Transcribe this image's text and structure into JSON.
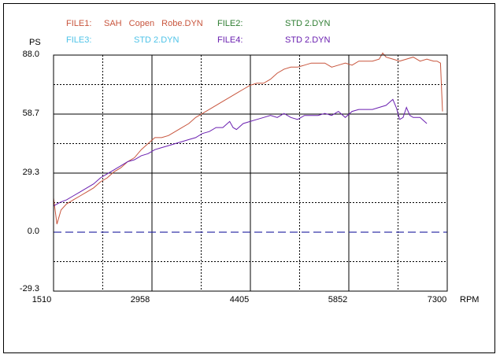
{
  "legend": {
    "file1_label": "FILE1:",
    "file1_name": "SAH Copen Robe.DYN",
    "file2_label": "FILE2:",
    "file2_name": "STD 2.DYN",
    "file3_label": "FILE3:",
    "file3_name": "STD 2.DYN",
    "file4_label": "FILE4:",
    "file4_name": "STD 2.DYN",
    "colors": {
      "file1": "#c8553d",
      "file2": "#2e7d32",
      "file3": "#4fc3e8",
      "file4": "#6a1fb0"
    }
  },
  "chart_data": {
    "type": "line",
    "ylabel": "PS",
    "xlabel": "RPM",
    "xlim": [
      1510,
      7300
    ],
    "ylim": [
      -29.3,
      88.0
    ],
    "x_ticks": [
      "1510",
      "2958",
      "4405",
      "5852",
      "7300"
    ],
    "y_ticks": [
      "88.0",
      "58.7",
      "29.3",
      "0.0",
      "-29.3"
    ],
    "grid": true,
    "series": [
      {
        "name": "SAH Copen Robe.DYN",
        "color": "#c8553d",
        "x": [
          1510,
          1560,
          1620,
          1700,
          1800,
          1900,
          2000,
          2100,
          2200,
          2300,
          2400,
          2500,
          2600,
          2700,
          2800,
          2900,
          3000,
          3100,
          3200,
          3300,
          3400,
          3500,
          3600,
          3700,
          3800,
          3900,
          4000,
          4100,
          4200,
          4300,
          4400,
          4500,
          4600,
          4700,
          4800,
          4900,
          5000,
          5100,
          5200,
          5300,
          5400,
          5500,
          5600,
          5700,
          5800,
          5900,
          6000,
          6100,
          6200,
          6300,
          6350,
          6400,
          6500,
          6600,
          6700,
          6800,
          6900,
          7000,
          7100,
          7150,
          7200,
          7230
        ],
        "y": [
          17.0,
          4.0,
          11.0,
          14.0,
          16.0,
          18.0,
          20.0,
          22.0,
          25.0,
          27.0,
          30.0,
          32.0,
          35.0,
          37.0,
          41.0,
          44.0,
          47.0,
          47.0,
          48.0,
          50.0,
          52.0,
          54.0,
          57.0,
          59.0,
          61.0,
          63.0,
          65.0,
          67.0,
          69.0,
          71.0,
          73.0,
          74.0,
          74.0,
          76.0,
          79.0,
          81.0,
          82.0,
          82.0,
          83.0,
          84.0,
          84.0,
          84.0,
          82.0,
          83.0,
          84.0,
          83.0,
          85.0,
          85.0,
          85.0,
          86.0,
          89.0,
          87.0,
          86.0,
          85.0,
          86.0,
          87.0,
          85.0,
          86.0,
          85.0,
          85.0,
          84.0,
          60.0
        ]
      },
      {
        "name": "STD 2.DYN",
        "color": "#6a1fb0",
        "x": [
          1510,
          1560,
          1620,
          1700,
          1800,
          1900,
          2000,
          2100,
          2200,
          2300,
          2400,
          2500,
          2600,
          2700,
          2800,
          2900,
          3000,
          3100,
          3200,
          3300,
          3400,
          3500,
          3600,
          3700,
          3800,
          3900,
          4000,
          4100,
          4150,
          4200,
          4300,
          4400,
          4500,
          4600,
          4700,
          4800,
          4900,
          5000,
          5100,
          5200,
          5300,
          5400,
          5500,
          5600,
          5700,
          5800,
          5900,
          6000,
          6100,
          6200,
          6300,
          6400,
          6500,
          6550,
          6600,
          6650,
          6700,
          6750,
          6800,
          6900,
          7000
        ],
        "y": [
          13.0,
          14.0,
          15.0,
          16.0,
          18.0,
          20.0,
          22.0,
          24.0,
          27.0,
          29.0,
          31.0,
          33.0,
          35.0,
          36.0,
          38.0,
          39.0,
          41.0,
          42.0,
          43.0,
          44.0,
          45.0,
          46.0,
          47.0,
          49.0,
          50.0,
          52.0,
          52.0,
          55.0,
          52.0,
          51.0,
          54.0,
          55.0,
          56.0,
          57.0,
          58.0,
          57.0,
          59.0,
          57.0,
          56.0,
          58.0,
          58.0,
          58.0,
          59.0,
          58.0,
          60.0,
          57.0,
          60.0,
          61.0,
          61.0,
          61.0,
          62.0,
          63.0,
          66.0,
          62.0,
          56.0,
          57.0,
          62.0,
          58.0,
          57.0,
          57.0,
          54.0
        ]
      }
    ]
  }
}
